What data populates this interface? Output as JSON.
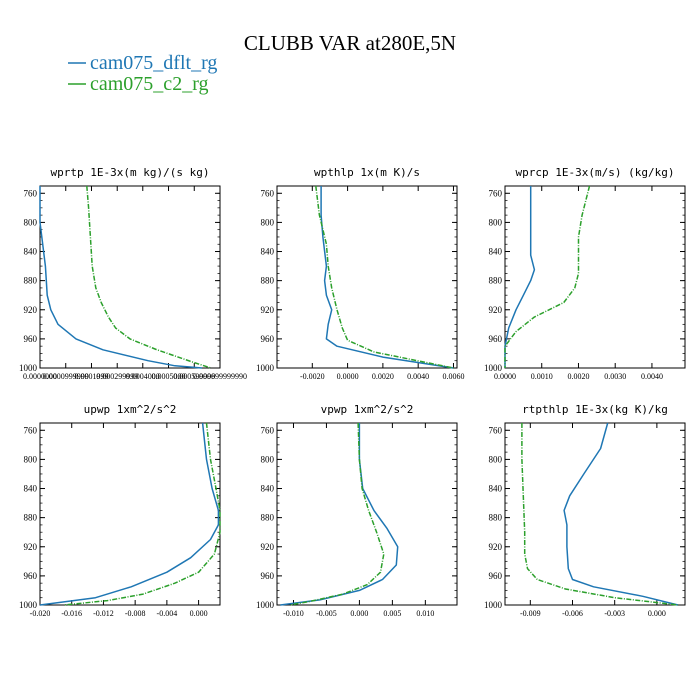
{
  "figure": {
    "title": "CLUBB VAR at280E,5N",
    "legend": [
      {
        "label": "cam075_dflt_rg",
        "color": "#1f77b4",
        "style": "solid"
      },
      {
        "label": "cam075_c2_rg",
        "color": "#2ca02c",
        "style": "dashdot"
      }
    ]
  },
  "chart_data": [
    {
      "type": "line",
      "title": "wprtp  1E-3x(m kg)/(s kg)",
      "ylim": [
        1000,
        750
      ],
      "yticks": [
        760,
        800,
        840,
        880,
        920,
        960,
        1000
      ],
      "xlim": [
        0.0,
        1.0
      ],
      "xticks": [
        0.0,
        0.143,
        0.286,
        0.429,
        0.571,
        0.714,
        0.857,
        1.0
      ],
      "xtick_labels": [
        "0.0000000",
        "0.0000999999",
        "0.0001999",
        "0.000299999",
        "0.0004000",
        "0.0005000",
        "0.000599999",
        "0.000699999990"
      ],
      "series": [
        {
          "name": "cam075_dflt_rg",
          "color": "#1f77b4",
          "x": [
            0.0,
            0.0,
            0.02,
            0.03,
            0.035,
            0.04,
            0.06,
            0.1,
            0.2,
            0.35,
            0.6,
            0.75,
            0.9
          ],
          "y": [
            750,
            800,
            840,
            860,
            880,
            900,
            920,
            940,
            960,
            975,
            990,
            997,
            1000
          ]
        },
        {
          "name": "cam075_c2_rg",
          "color": "#2ca02c",
          "x": [
            0.26,
            0.27,
            0.28,
            0.29,
            0.31,
            0.34,
            0.38,
            0.42,
            0.5,
            0.65,
            0.85,
            0.95
          ],
          "y": [
            750,
            780,
            820,
            860,
            890,
            910,
            930,
            945,
            960,
            975,
            992,
            1000
          ]
        }
      ]
    },
    {
      "type": "line",
      "title": "wpthlp  1x(m K)/s",
      "ylim": [
        1000,
        750
      ],
      "yticks": [
        760,
        800,
        840,
        880,
        920,
        960,
        1000
      ],
      "xlim": [
        -0.004,
        0.0062
      ],
      "xticks": [
        -0.002,
        0.0,
        0.002,
        0.004,
        0.006
      ],
      "xtick_labels": [
        "-0.0020",
        "0.0000",
        "0.0020",
        "0.0040",
        "0.0060"
      ],
      "series": [
        {
          "name": "cam075_dflt_rg",
          "color": "#1f77b4",
          "x": [
            -0.0015,
            -0.0015,
            -0.0014,
            -0.0012,
            -0.0013,
            -0.0012,
            -0.0009,
            -0.0011,
            -0.0012,
            -0.0006,
            0.002,
            0.006
          ],
          "y": [
            750,
            790,
            820,
            860,
            880,
            900,
            920,
            940,
            960,
            970,
            985,
            1000
          ]
        },
        {
          "name": "cam075_c2_rg",
          "color": "#2ca02c",
          "x": [
            -0.0018,
            -0.0016,
            -0.0012,
            -0.0011,
            -0.0009,
            -0.0006,
            -0.0003,
            0.0,
            0.0015,
            0.006
          ],
          "y": [
            750,
            790,
            830,
            860,
            890,
            920,
            945,
            962,
            978,
            1000
          ]
        }
      ]
    },
    {
      "type": "line",
      "title": "wprcp  1E-3x(m/s) (kg/kg)",
      "ylim": [
        1000,
        750
      ],
      "yticks": [
        760,
        800,
        840,
        880,
        920,
        960,
        1000
      ],
      "xlim": [
        0.0,
        0.0049
      ],
      "xticks": [
        0.0,
        0.001,
        0.002,
        0.003,
        0.004
      ],
      "xtick_labels": [
        "0.0000",
        "0.0010",
        "0.0020",
        "0.0030",
        "0.0040"
      ],
      "series": [
        {
          "name": "cam075_dflt_rg",
          "color": "#1f77b4",
          "x": [
            0.0007,
            0.0007,
            0.0007,
            0.0007,
            0.0008,
            0.0007,
            0.0005,
            0.0003,
            0.0001,
            0.0,
            0.0
          ],
          "y": [
            750,
            790,
            820,
            845,
            865,
            880,
            900,
            920,
            945,
            970,
            1000
          ]
        },
        {
          "name": "cam075_c2_rg",
          "color": "#2ca02c",
          "x": [
            0.0023,
            0.0021,
            0.002,
            0.002,
            0.002,
            0.0019,
            0.0016,
            0.0008,
            0.0003,
            0.0,
            0.0
          ],
          "y": [
            750,
            790,
            820,
            850,
            870,
            890,
            910,
            930,
            950,
            970,
            1000
          ]
        }
      ]
    },
    {
      "type": "line",
      "title": "upwp  1xm^2/s^2",
      "ylim": [
        1000,
        750
      ],
      "yticks": [
        760,
        800,
        840,
        880,
        920,
        960,
        1000
      ],
      "xlim": [
        -0.02,
        0.0027
      ],
      "xticks": [
        -0.02,
        -0.016,
        -0.012,
        -0.008,
        -0.004,
        0.0
      ],
      "xtick_labels": [
        "-0.020",
        "-0.016",
        "-0.012",
        "-0.008",
        "-0.004",
        "0.000"
      ],
      "series": [
        {
          "name": "cam075_dflt_rg",
          "color": "#1f77b4",
          "x": [
            0.0005,
            0.001,
            0.0017,
            0.0025,
            0.0025,
            0.0015,
            -0.001,
            -0.004,
            -0.0085,
            -0.013,
            -0.02
          ],
          "y": [
            750,
            800,
            840,
            870,
            890,
            910,
            935,
            955,
            975,
            990,
            1000
          ]
        },
        {
          "name": "cam075_c2_rg",
          "color": "#2ca02c",
          "x": [
            0.001,
            0.0015,
            0.0022,
            0.0027,
            0.0027,
            0.002,
            0.0,
            -0.003,
            -0.007,
            -0.0115,
            -0.017
          ],
          "y": [
            750,
            800,
            840,
            870,
            900,
            930,
            955,
            970,
            985,
            994,
            1000
          ]
        }
      ]
    },
    {
      "type": "line",
      "title": "vpwp  1xm^2/s^2",
      "ylim": [
        1000,
        750
      ],
      "yticks": [
        760,
        800,
        840,
        880,
        920,
        960,
        1000
      ],
      "xlim": [
        -0.0125,
        0.0148
      ],
      "xticks": [
        -0.01,
        -0.005,
        0.0,
        0.005,
        0.01
      ],
      "xtick_labels": [
        "-0.010",
        "-0.005",
        "0.000",
        "0.005",
        "0.010"
      ],
      "series": [
        {
          "name": "cam075_dflt_rg",
          "color": "#1f77b4",
          "x": [
            0.0,
            0.0,
            0.0005,
            0.0022,
            0.0042,
            0.0058,
            0.0056,
            0.0035,
            0.0,
            -0.006,
            -0.012
          ],
          "y": [
            750,
            800,
            840,
            870,
            895,
            920,
            945,
            965,
            980,
            993,
            1000
          ]
        },
        {
          "name": "cam075_c2_rg",
          "color": "#2ca02c",
          "x": [
            -0.0002,
            0.0,
            0.0004,
            0.0014,
            0.0026,
            0.0037,
            0.0032,
            0.0012,
            -0.0025,
            -0.0075,
            -0.0105
          ],
          "y": [
            750,
            800,
            840,
            870,
            900,
            930,
            955,
            972,
            985,
            995,
            1000
          ]
        }
      ]
    },
    {
      "type": "line",
      "title": "rtpthlp  1E-3x(kg K)/kg",
      "ylim": [
        1000,
        750
      ],
      "yticks": [
        760,
        800,
        840,
        880,
        920,
        960,
        1000
      ],
      "xlim": [
        -0.0108,
        0.002
      ],
      "xticks": [
        -0.009,
        -0.006,
        -0.003,
        0.0
      ],
      "xtick_labels": [
        "-0.009",
        "-0.006",
        "-0.003",
        "0.000"
      ],
      "series": [
        {
          "name": "cam075_dflt_rg",
          "color": "#1f77b4",
          "x": [
            -0.0035,
            -0.004,
            -0.0052,
            -0.0062,
            -0.0066,
            -0.0064,
            -0.0064,
            -0.0063,
            -0.006,
            -0.0045,
            -0.001,
            0.0015
          ],
          "y": [
            750,
            785,
            820,
            850,
            870,
            890,
            920,
            950,
            965,
            975,
            988,
            1000
          ]
        },
        {
          "name": "cam075_c2_rg",
          "color": "#2ca02c",
          "x": [
            -0.0096,
            -0.0096,
            -0.0095,
            -0.0094,
            -0.0094,
            -0.0092,
            -0.0085,
            -0.0065,
            -0.003,
            0.0015
          ],
          "y": [
            750,
            800,
            850,
            900,
            930,
            950,
            965,
            978,
            990,
            1000
          ]
        }
      ]
    }
  ]
}
